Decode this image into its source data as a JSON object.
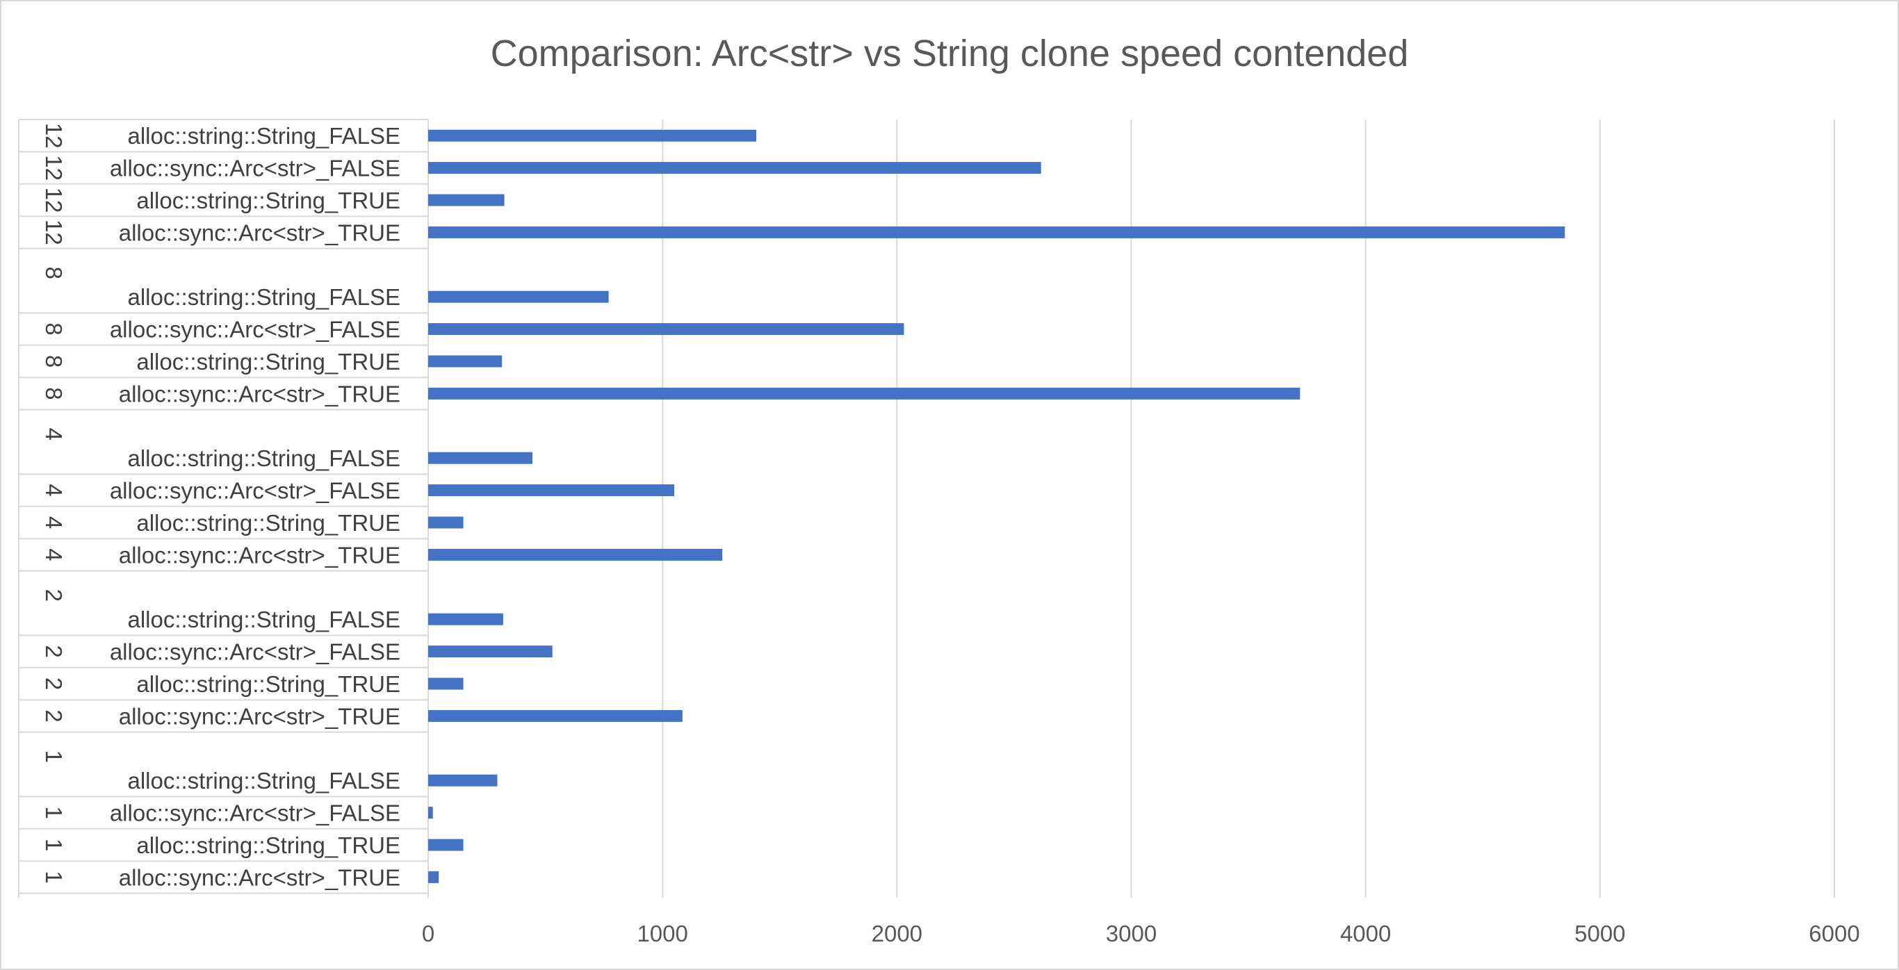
{
  "chart_data": {
    "type": "bar",
    "orientation": "horizontal",
    "title": "Comparison: Arc<str> vs String clone speed contended",
    "xlabel": "",
    "ylabel": "",
    "xlim": [
      0,
      6000
    ],
    "x_ticks": [
      "0",
      "1000",
      "2000",
      "3000",
      "4000",
      "5000",
      "6000"
    ],
    "grid": true,
    "legend": "none",
    "bar_color": "#4472c4",
    "groups": [
      {
        "group": "12",
        "rows": [
          {
            "group_label": "12",
            "category": "alloc::string::String_FALSE",
            "value": 1400
          },
          {
            "group_label": "12",
            "category": "alloc::sync::Arc<str>_FALSE",
            "value": 2615
          },
          {
            "group_label": "12",
            "category": "alloc::string::String_TRUE",
            "value": 325
          },
          {
            "group_label": "12",
            "category": "alloc::sync::Arc<str>_TRUE",
            "value": 4850
          }
        ]
      },
      {
        "group": "8",
        "rows": [
          {
            "group_label": "8",
            "category": "alloc::string::String_FALSE",
            "value": 770
          },
          {
            "group_label": "8",
            "category": "alloc::sync::Arc<str>_FALSE",
            "value": 2030
          },
          {
            "group_label": "8",
            "category": "alloc::string::String_TRUE",
            "value": 315
          },
          {
            "group_label": "8",
            "category": "alloc::sync::Arc<str>_TRUE",
            "value": 3720
          }
        ]
      },
      {
        "group": "4",
        "rows": [
          {
            "group_label": "4",
            "category": "alloc::string::String_FALSE",
            "value": 445
          },
          {
            "group_label": "4",
            "category": "alloc::sync::Arc<str>_FALSE",
            "value": 1050
          },
          {
            "group_label": "4",
            "category": "alloc::string::String_TRUE",
            "value": 150
          },
          {
            "group_label": "4",
            "category": "alloc::sync::Arc<str>_TRUE",
            "value": 1255
          }
        ]
      },
      {
        "group": "2",
        "rows": [
          {
            "group_label": "2",
            "category": "alloc::string::String_FALSE",
            "value": 320
          },
          {
            "group_label": "2",
            "category": "alloc::sync::Arc<str>_FALSE",
            "value": 530
          },
          {
            "group_label": "2",
            "category": "alloc::string::String_TRUE",
            "value": 150
          },
          {
            "group_label": "2",
            "category": "alloc::sync::Arc<str>_TRUE",
            "value": 1085
          }
        ]
      },
      {
        "group": "1",
        "rows": [
          {
            "group_label": "1",
            "category": "alloc::string::String_FALSE",
            "value": 295
          },
          {
            "group_label": "1",
            "category": "alloc::sync::Arc<str>_FALSE",
            "value": 20
          },
          {
            "group_label": "1",
            "category": "alloc::string::String_TRUE",
            "value": 150
          },
          {
            "group_label": "1",
            "category": "alloc::sync::Arc<str>_TRUE",
            "value": 45
          }
        ]
      }
    ]
  }
}
